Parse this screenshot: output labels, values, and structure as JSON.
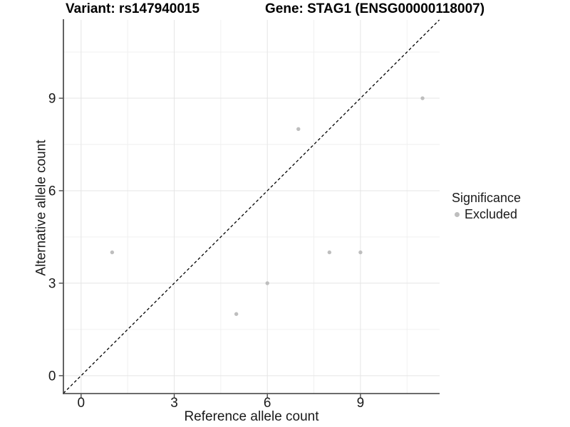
{
  "chart_data": {
    "type": "scatter",
    "titles": {
      "variant": "Variant: rs147940015",
      "gene": "Gene: STAG1 (ENSG00000118007)"
    },
    "xlabel": "Reference allele count",
    "ylabel": "Alternative allele count",
    "xlim": [
      -0.57,
      11.55
    ],
    "ylim": [
      -0.58,
      11.54
    ],
    "xticks": [
      0,
      3,
      6,
      9
    ],
    "yticks": [
      0,
      3,
      6,
      9
    ],
    "xticks_minor": [
      1.5,
      4.5,
      7.5,
      10.5
    ],
    "yticks_minor": [
      1.5,
      4.5,
      7.5,
      10.5
    ],
    "grid": true,
    "series": [
      {
        "name": "Excluded",
        "color": "#bebebe",
        "points": [
          [
            1,
            4
          ],
          [
            5,
            2
          ],
          [
            6,
            3
          ],
          [
            7,
            8
          ],
          [
            8,
            4
          ],
          [
            9,
            4
          ],
          [
            11,
            9
          ]
        ]
      }
    ],
    "identity_line": {
      "slope": 1,
      "intercept": 0,
      "style": "dashed",
      "color": "#000000"
    },
    "legend": {
      "position": "right",
      "title": "Significance",
      "items": [
        {
          "label": "Excluded",
          "color": "#bebebe",
          "marker": "circle"
        }
      ]
    },
    "colors": {
      "background": "#ffffff",
      "grid_major": "#e5e5e5",
      "grid_minor": "#efefef",
      "axis_line": "#3c3c3c",
      "tick_label": "#1a1a1a",
      "point": "#bebebe"
    }
  }
}
